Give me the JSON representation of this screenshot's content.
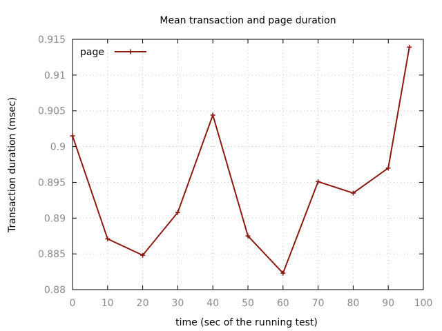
{
  "chart_data": {
    "type": "line",
    "title": "Mean transaction and page duration",
    "xlabel": "time (sec of the running test)",
    "ylabel": "Transaction duration (msec)",
    "xlim": [
      0,
      100
    ],
    "ylim": [
      0.88,
      0.915
    ],
    "x_ticks": [
      "0",
      "10",
      "20",
      "30",
      "40",
      "50",
      "60",
      "70",
      "80",
      "90",
      "100"
    ],
    "y_ticks": [
      "0.88",
      "0.885",
      "0.89",
      "0.895",
      "0.9",
      "0.905",
      "0.91",
      "0.915"
    ],
    "grid": true,
    "legend_position": "top-left",
    "series": [
      {
        "name": "page",
        "color": "#8b1a10",
        "marker": "plus",
        "x": [
          0,
          10,
          20,
          30,
          40,
          50,
          60,
          70,
          80,
          90,
          96
        ],
        "y": [
          0.9015,
          0.8871,
          0.8848,
          0.8908,
          0.9044,
          0.8875,
          0.8823,
          0.8951,
          0.8935,
          0.897,
          0.9139
        ]
      }
    ]
  }
}
